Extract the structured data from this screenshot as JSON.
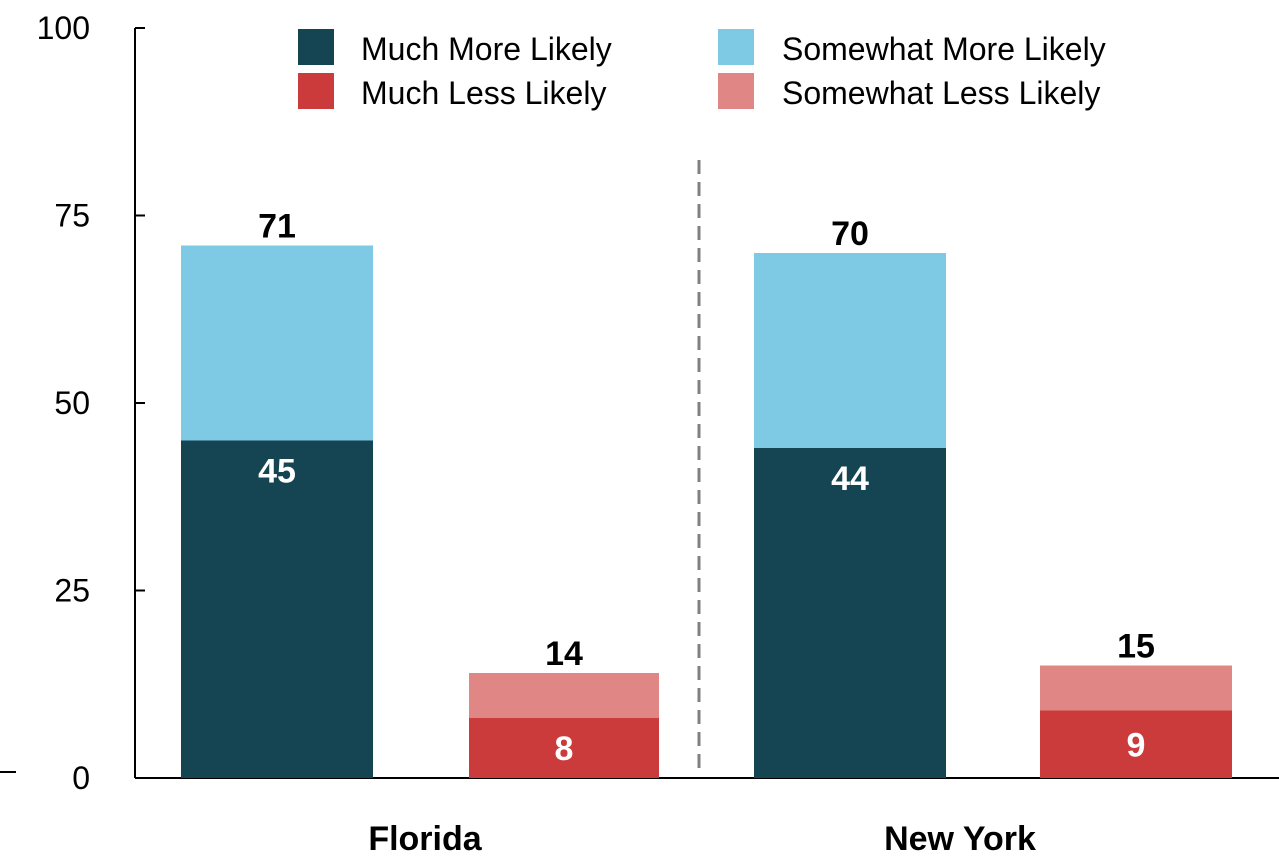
{
  "chart_data": {
    "type": "bar",
    "stacked": true,
    "ylim": [
      0,
      100
    ],
    "yticks": [
      0,
      25,
      50,
      75,
      100
    ],
    "groups": [
      "Florida",
      "New York"
    ],
    "bars": [
      {
        "group": "Florida",
        "kind": "more",
        "segments": [
          {
            "series": "Much More Likely",
            "value": 45
          },
          {
            "series": "Somewhat More Likely",
            "value": 26
          }
        ],
        "total": 71
      },
      {
        "group": "Florida",
        "kind": "less",
        "segments": [
          {
            "series": "Much Less Likely",
            "value": 8
          },
          {
            "series": "Somewhat Less Likely",
            "value": 6
          }
        ],
        "total": 14
      },
      {
        "group": "New York",
        "kind": "more",
        "segments": [
          {
            "series": "Much More Likely",
            "value": 44
          },
          {
            "series": "Somewhat More Likely",
            "value": 26
          }
        ],
        "total": 70
      },
      {
        "group": "New York",
        "kind": "less",
        "segments": [
          {
            "series": "Much Less Likely",
            "value": 9
          },
          {
            "series": "Somewhat Less Likely",
            "value": 6
          }
        ],
        "total": 15
      }
    ],
    "series": [
      {
        "name": "Much More Likely",
        "color": "#154452"
      },
      {
        "name": "Somewhat More Likely",
        "color": "#7ec9e3"
      },
      {
        "name": "Much Less Likely",
        "color": "#cc3b3b"
      },
      {
        "name": "Somewhat Less Likely",
        "color": "#e08785"
      }
    ],
    "legend_position": "top-right",
    "group_divider": "dashed",
    "grid": false
  }
}
